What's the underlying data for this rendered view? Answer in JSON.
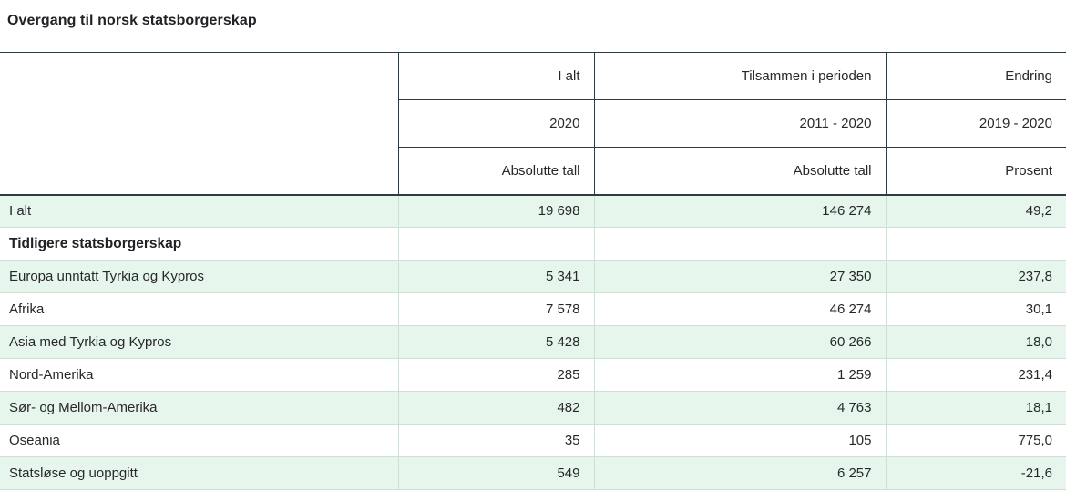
{
  "title": "Overgang til norsk statsborgerskap",
  "colors": {
    "row_stripe_green": "#e7f6ec",
    "border_dark": "#2d3c43",
    "border_light": "#cfdfd8",
    "text": "#26282b"
  },
  "header": {
    "row1": [
      "I alt",
      "Tilsammen i perioden",
      "Endring"
    ],
    "row2": [
      "2020",
      "2011 - 2020",
      "2019 - 2020"
    ],
    "row3": [
      "Absolutte tall",
      "Absolutte tall",
      "Prosent"
    ]
  },
  "rows": [
    {
      "label": "I alt",
      "v1": "19 698",
      "v2": "146 274",
      "v3": "49,2"
    },
    {
      "label": "Tidligere statsborgerskap",
      "v1": "",
      "v2": "",
      "v3": ""
    },
    {
      "label": "Europa unntatt Tyrkia og Kypros",
      "v1": "5 341",
      "v2": "27 350",
      "v3": "237,8"
    },
    {
      "label": "Afrika",
      "v1": "7 578",
      "v2": "46 274",
      "v3": "30,1"
    },
    {
      "label": "Asia med Tyrkia og Kypros",
      "v1": "5 428",
      "v2": "60 266",
      "v3": "18,0"
    },
    {
      "label": "Nord-Amerika",
      "v1": "285",
      "v2": "1 259",
      "v3": "231,4"
    },
    {
      "label": "Sør- og Mellom-Amerika",
      "v1": "482",
      "v2": "4 763",
      "v3": "18,1"
    },
    {
      "label": "Oseania",
      "v1": "35",
      "v2": "105",
      "v3": "775,0"
    },
    {
      "label": "Statsløse og uoppgitt",
      "v1": "549",
      "v2": "6 257",
      "v3": "-21,6"
    }
  ],
  "chart_data": {
    "type": "table",
    "title": "Overgang til norsk statsborgerskap",
    "columns": [
      "Tidligere statsborgerskap",
      "I alt 2020 (Absolutte tall)",
      "Tilsammen i perioden 2011 - 2020 (Absolutte tall)",
      "Endring 2019 - 2020 (Prosent)"
    ],
    "data": [
      [
        "I alt",
        19698,
        146274,
        49.2
      ],
      [
        "Europa unntatt Tyrkia og Kypros",
        5341,
        27350,
        237.8
      ],
      [
        "Afrika",
        7578,
        46274,
        30.1
      ],
      [
        "Asia med Tyrkia og Kypros",
        5428,
        60266,
        18.0
      ],
      [
        "Nord-Amerika",
        285,
        1259,
        231.4
      ],
      [
        "Sør- og Mellom-Amerika",
        482,
        4763,
        18.1
      ],
      [
        "Oseania",
        35,
        105,
        775.0
      ],
      [
        "Statsløse og uoppgitt",
        549,
        6257,
        -21.6
      ]
    ]
  }
}
